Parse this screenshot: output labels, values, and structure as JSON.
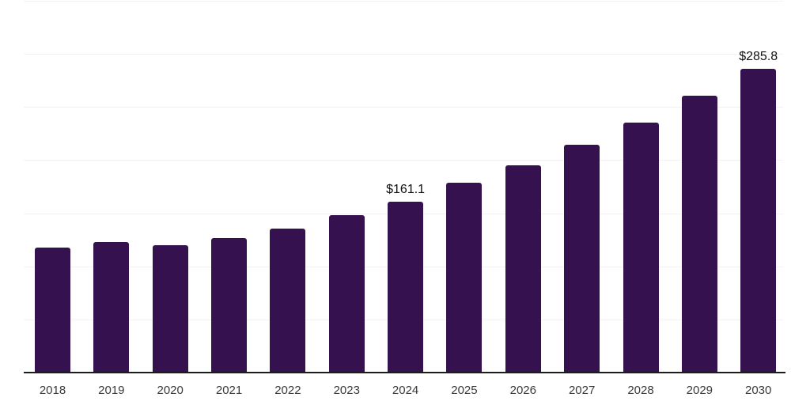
{
  "chart_data": {
    "type": "bar",
    "categories": [
      "2018",
      "2019",
      "2020",
      "2021",
      "2022",
      "2023",
      "2024",
      "2025",
      "2026",
      "2027",
      "2028",
      "2029",
      "2030"
    ],
    "values": [
      118.0,
      122.8,
      119.8,
      126.5,
      135.2,
      147.9,
      161.1,
      178.4,
      194.8,
      214.1,
      235.4,
      261.0,
      285.8
    ],
    "data_labels": [
      {
        "category": "2024",
        "text": "$161.1"
      },
      {
        "category": "2030",
        "text": "$285.8"
      }
    ],
    "ylim": [
      0,
      350
    ],
    "gridline_interval": 50,
    "grid": true,
    "legend": false,
    "y_axis_labels_visible": false,
    "colors": {
      "bar": "#35124F",
      "axis": "#1C1C1C",
      "gridline": "#F2F2F2",
      "tick_label": "#3A3A3A",
      "data_label": "#111111",
      "background": "#FFFFFF"
    }
  }
}
